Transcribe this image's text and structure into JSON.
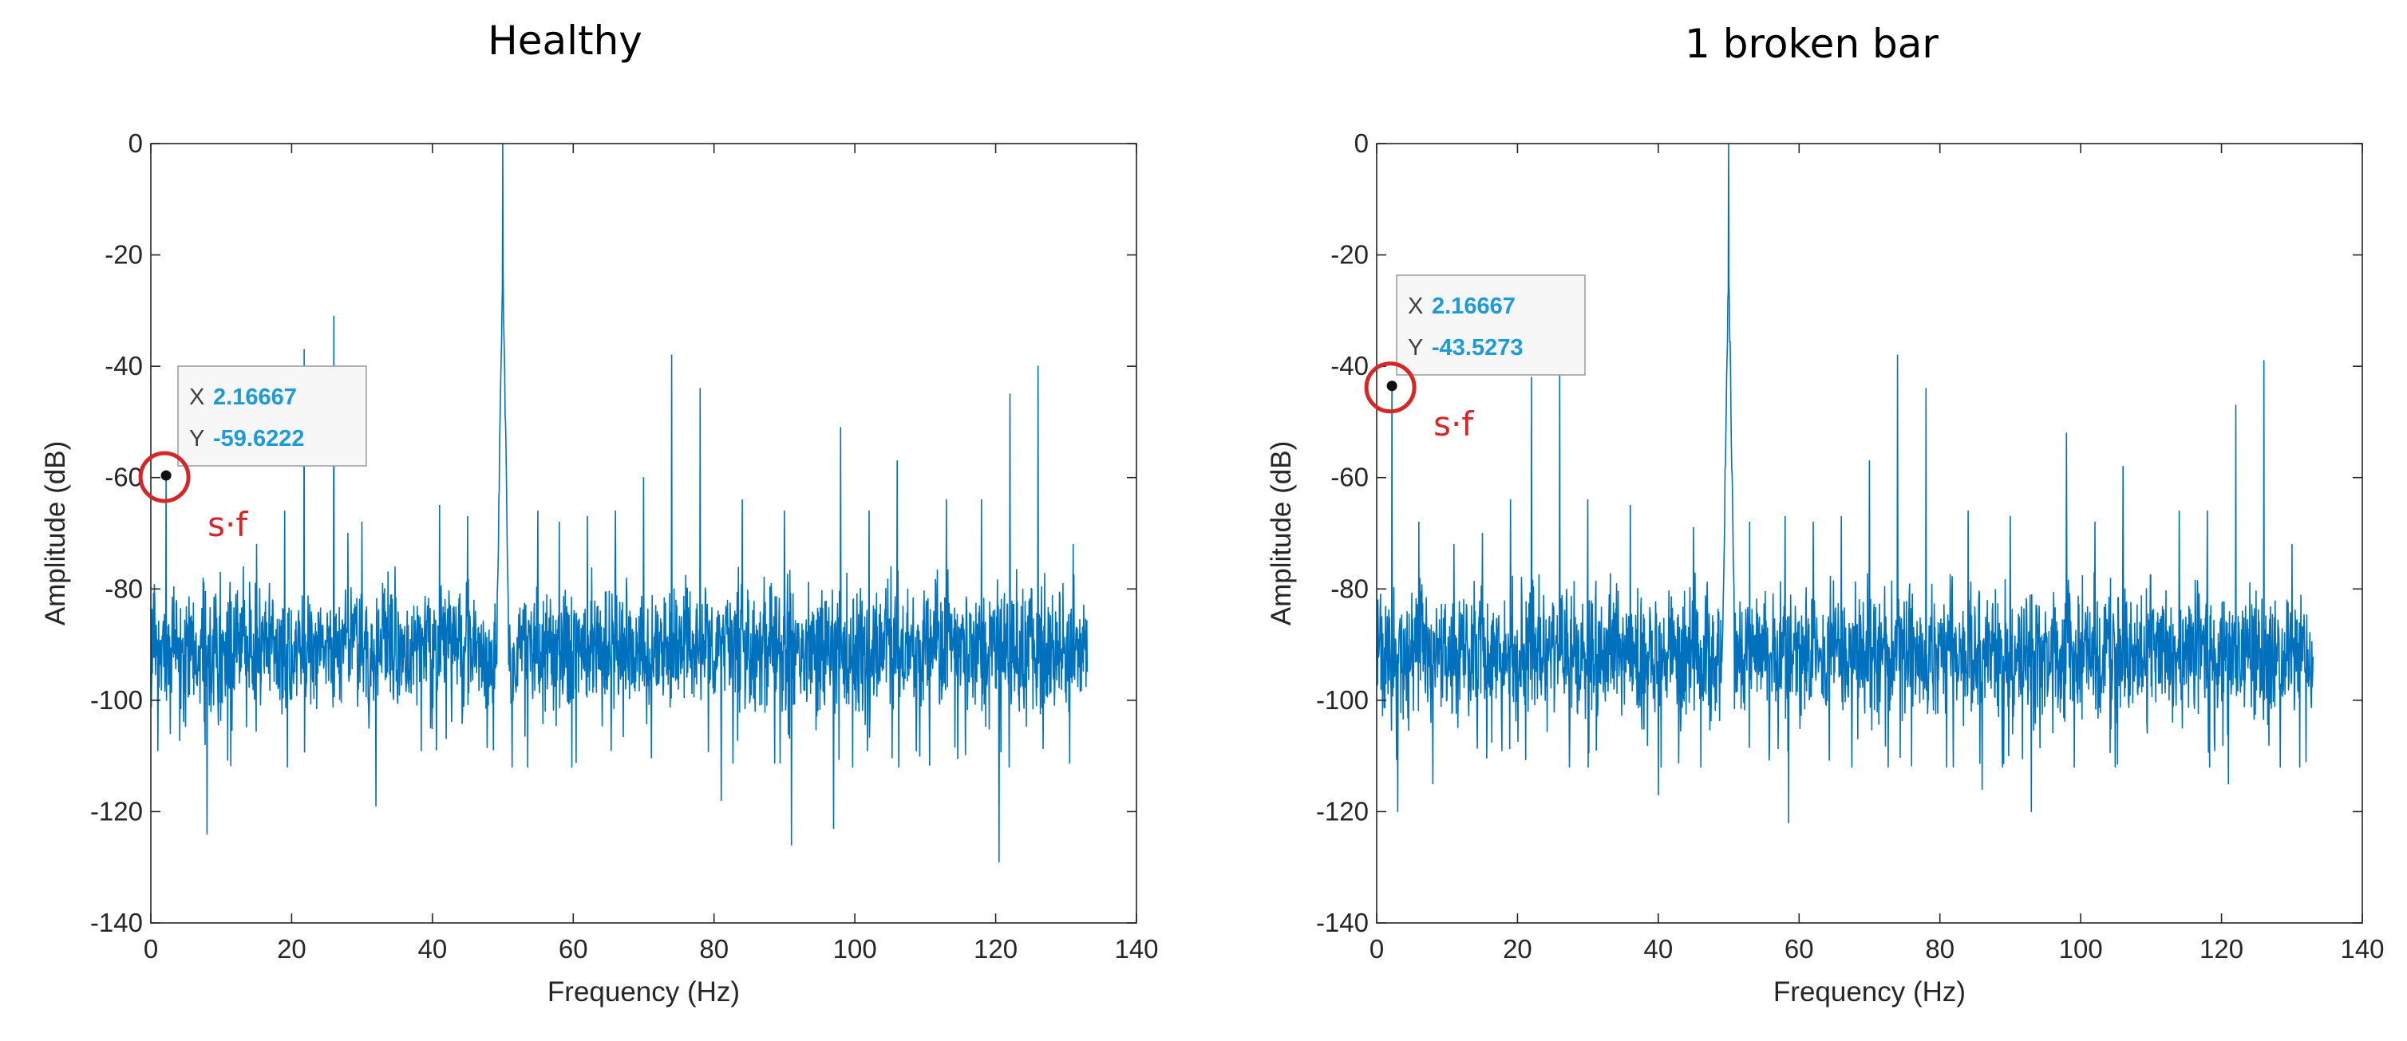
{
  "chart_data": [
    {
      "type": "line",
      "title": "Healthy",
      "xlabel": "Frequency (Hz)",
      "ylabel": "Amplitude (dB)",
      "xlim": [
        0,
        140
      ],
      "ylim": [
        -140,
        0
      ],
      "xticks": [
        "0",
        "20",
        "40",
        "60",
        "80",
        "100",
        "120",
        "140"
      ],
      "yticks": [
        "0",
        "-20",
        "-40",
        "-60",
        "-80",
        "-100",
        "-120",
        "-140"
      ],
      "series": [
        {
          "name": "Amplitude spectrum",
          "color": "#0072bd",
          "x_range": [
            0,
            133
          ],
          "noise_floor": -91
        }
      ],
      "peaks": [
        {
          "x": 2.16667,
          "y": -59.6222
        },
        {
          "x": 8,
          "y": -75
        },
        {
          "x": 15,
          "y": -72
        },
        {
          "x": 19,
          "y": -66
        },
        {
          "x": 21.8,
          "y": -37
        },
        {
          "x": 26,
          "y": -31
        },
        {
          "x": 28,
          "y": -70
        },
        {
          "x": 30,
          "y": -68
        },
        {
          "x": 41,
          "y": -65
        },
        {
          "x": 45,
          "y": -67
        },
        {
          "x": 50,
          "y": 0
        },
        {
          "x": 55,
          "y": -66
        },
        {
          "x": 58,
          "y": -68
        },
        {
          "x": 62,
          "y": -67
        },
        {
          "x": 66,
          "y": -66
        },
        {
          "x": 70,
          "y": -60
        },
        {
          "x": 74,
          "y": -38
        },
        {
          "x": 78,
          "y": -44
        },
        {
          "x": 84,
          "y": -64
        },
        {
          "x": 90,
          "y": -66
        },
        {
          "x": 98,
          "y": -51
        },
        {
          "x": 102,
          "y": -66
        },
        {
          "x": 106,
          "y": -57
        },
        {
          "x": 113,
          "y": -64
        },
        {
          "x": 118,
          "y": -64
        },
        {
          "x": 122,
          "y": -45
        },
        {
          "x": 126,
          "y": -40
        },
        {
          "x": 131,
          "y": -72
        }
      ],
      "dips": [
        {
          "x": 8,
          "y": -124
        },
        {
          "x": 32,
          "y": -119
        },
        {
          "x": 81,
          "y": -118
        },
        {
          "x": 91,
          "y": -126
        },
        {
          "x": 97,
          "y": -123
        },
        {
          "x": 120.5,
          "y": -129
        }
      ],
      "datatip": {
        "x_label": "X",
        "x_value": "2.16667",
        "y_label": "Y",
        "y_value": "-59.6222",
        "x": 2.16667,
        "y": -59.6222
      },
      "annotation": {
        "text": "s·f",
        "color": "#d62728"
      }
    },
    {
      "type": "line",
      "title": "1 broken bar",
      "xlabel": "Frequency (Hz)",
      "ylabel": "Amplitude (dB)",
      "xlim": [
        0,
        140
      ],
      "ylim": [
        -140,
        0
      ],
      "xticks": [
        "0",
        "20",
        "40",
        "60",
        "80",
        "100",
        "120",
        "140"
      ],
      "yticks": [
        "0",
        "-20",
        "-40",
        "-60",
        "-80",
        "-100",
        "-120",
        "-140"
      ],
      "series": [
        {
          "name": "Amplitude spectrum",
          "color": "#0072bd",
          "x_range": [
            0,
            133
          ],
          "noise_floor": -92
        }
      ],
      "peaks": [
        {
          "x": 2.16667,
          "y": -43.5273
        },
        {
          "x": 6,
          "y": -68
        },
        {
          "x": 11,
          "y": -72
        },
        {
          "x": 15,
          "y": -70
        },
        {
          "x": 19,
          "y": -64
        },
        {
          "x": 22,
          "y": -42
        },
        {
          "x": 26,
          "y": -41
        },
        {
          "x": 30,
          "y": -64
        },
        {
          "x": 36,
          "y": -65
        },
        {
          "x": 40,
          "y": -66
        },
        {
          "x": 45,
          "y": -69
        },
        {
          "x": 50,
          "y": 0
        },
        {
          "x": 53,
          "y": -68
        },
        {
          "x": 58,
          "y": -67
        },
        {
          "x": 62,
          "y": -68
        },
        {
          "x": 66,
          "y": -67
        },
        {
          "x": 70,
          "y": -57
        },
        {
          "x": 74,
          "y": -38
        },
        {
          "x": 78,
          "y": -44
        },
        {
          "x": 84,
          "y": -66
        },
        {
          "x": 90,
          "y": -67
        },
        {
          "x": 98,
          "y": -52
        },
        {
          "x": 102,
          "y": -68
        },
        {
          "x": 106,
          "y": -58
        },
        {
          "x": 114,
          "y": -66
        },
        {
          "x": 118,
          "y": -66
        },
        {
          "x": 122,
          "y": -47
        },
        {
          "x": 126,
          "y": -39
        },
        {
          "x": 130,
          "y": -72
        }
      ],
      "dips": [
        {
          "x": 3,
          "y": -120
        },
        {
          "x": 8,
          "y": -115
        },
        {
          "x": 40,
          "y": -117
        },
        {
          "x": 58.5,
          "y": -122
        },
        {
          "x": 86,
          "y": -116
        },
        {
          "x": 93,
          "y": -120
        },
        {
          "x": 121,
          "y": -115
        },
        {
          "x": 132,
          "y": -111
        }
      ],
      "datatip": {
        "x_label": "X",
        "x_value": "2.16667",
        "y_label": "Y",
        "y_value": "-43.5273",
        "x": 2.16667,
        "y": -43.5273
      },
      "annotation": {
        "text": "s·f",
        "color": "#d62728"
      }
    }
  ]
}
